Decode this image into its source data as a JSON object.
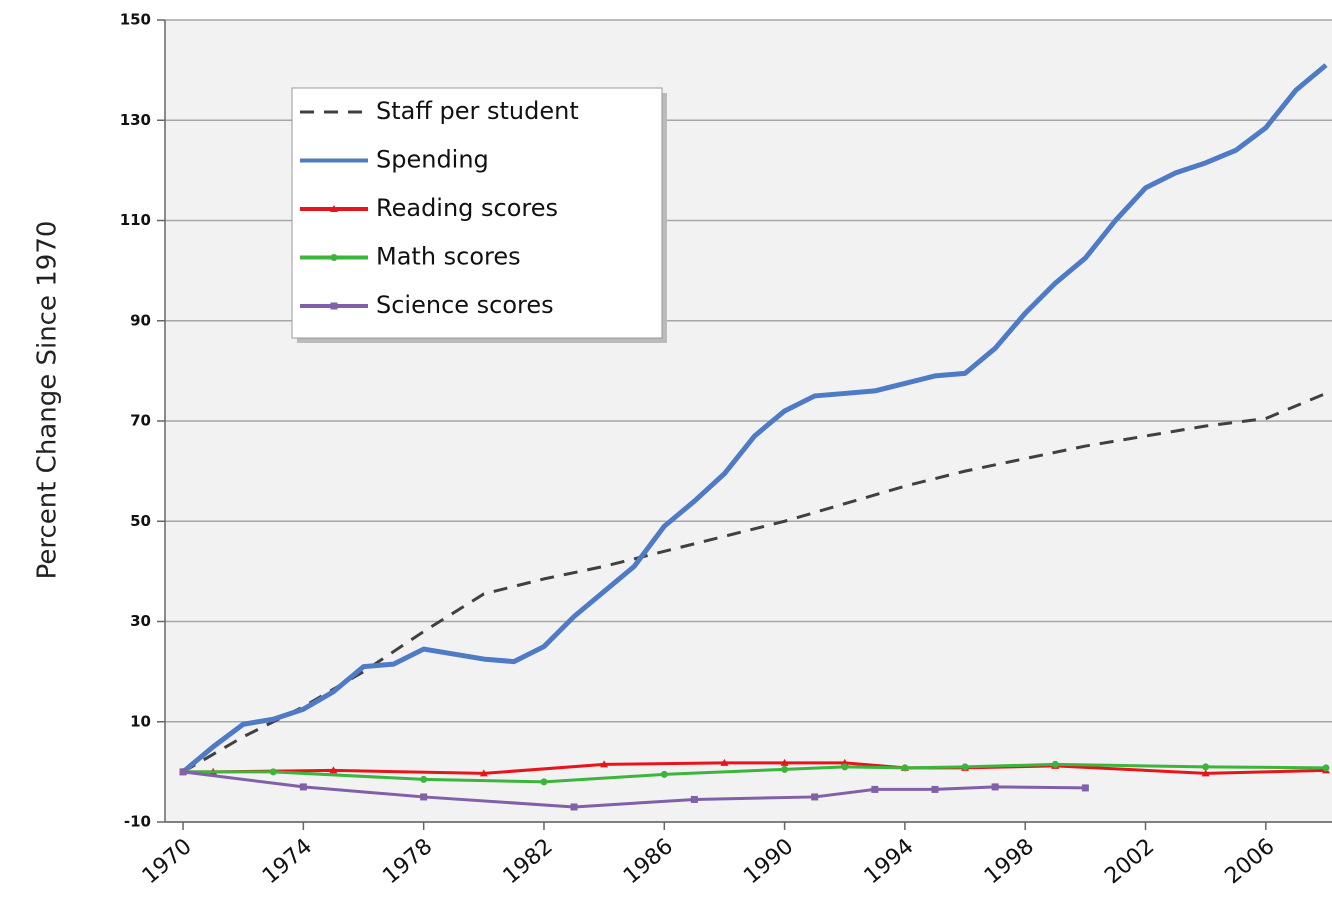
{
  "chart_data": {
    "type": "line",
    "y_label": "Percent Change Since 1970",
    "xlim": [
      1969.4,
      2008.2
    ],
    "xticks": [
      1970,
      1974,
      1978,
      1982,
      1986,
      1990,
      1994,
      1998,
      2002,
      2006
    ],
    "ylim": [
      -10,
      150
    ],
    "yticks": [
      -10,
      10,
      30,
      50,
      70,
      90,
      110,
      130,
      150
    ],
    "grid": true,
    "legend": "upper left",
    "series": [
      {
        "name": "Staff per student",
        "color": "#404040",
        "dash": true,
        "marker": "none",
        "x": [
          1970,
          1972,
          1974,
          1976,
          1978,
          1980,
          1982,
          1984,
          1986,
          1988,
          1990,
          1992,
          1994,
          1996,
          1998,
          2000,
          2002,
          2004,
          2006,
          2008
        ],
        "values": [
          0,
          7,
          13,
          20,
          28,
          35.5,
          38.5,
          41,
          44,
          47,
          50,
          53.5,
          57,
          60,
          62.5,
          65,
          67,
          69,
          70.5,
          75.5
        ]
      },
      {
        "name": "Spending",
        "color": "#4f7ac6",
        "dash": false,
        "marker": "none",
        "x": [
          1970,
          1971,
          1972,
          1973,
          1974,
          1975,
          1976,
          1977,
          1978,
          1979,
          1980,
          1981,
          1982,
          1983,
          1984,
          1985,
          1986,
          1987,
          1988,
          1989,
          1990,
          1991,
          1992,
          1993,
          1994,
          1995,
          1996,
          1997,
          1998,
          1999,
          2000,
          2001,
          2002,
          2003,
          2004,
          2005,
          2006,
          2007,
          2008
        ],
        "values": [
          0,
          5,
          9.5,
          10.5,
          12.5,
          16,
          21,
          21.5,
          24.5,
          23.5,
          22.5,
          22,
          25,
          31,
          36,
          41,
          49,
          54,
          59.5,
          67,
          72,
          75,
          75.5,
          76,
          77.5,
          79,
          79.5,
          84.5,
          91.5,
          97.5,
          102.5,
          110,
          116.5,
          119.5,
          121.5,
          124,
          128.5,
          136,
          141
        ]
      },
      {
        "name": "Reading scores",
        "color": "#e8141c",
        "dash": false,
        "marker": "triangle",
        "x": [
          1970,
          1971,
          1975,
          1980,
          1984,
          1988,
          1990,
          1992,
          1994,
          1996,
          1999,
          2004,
          2008
        ],
        "values": [
          0,
          0,
          0.3,
          -0.3,
          1.5,
          1.8,
          1.8,
          1.8,
          0.8,
          0.8,
          1.2,
          -0.3,
          0.3
        ]
      },
      {
        "name": "Math scores",
        "color": "#3cb53c",
        "dash": false,
        "marker": "circle",
        "x": [
          1970,
          1973,
          1978,
          1982,
          1986,
          1990,
          1992,
          1994,
          1996,
          1999,
          2004,
          2008
        ],
        "values": [
          0,
          0,
          -1.5,
          -2,
          -0.5,
          0.5,
          1,
          0.8,
          1,
          1.5,
          1,
          0.8
        ]
      },
      {
        "name": "Science scores",
        "color": "#8060a8",
        "dash": false,
        "marker": "square",
        "x": [
          1970,
          1974,
          1978,
          1983,
          1987,
          1991,
          1993,
          1995,
          1997,
          2000
        ],
        "values": [
          0,
          -3,
          -5,
          -7,
          -5.5,
          -5,
          -3.5,
          -3.5,
          -3,
          -3.2
        ]
      }
    ]
  }
}
